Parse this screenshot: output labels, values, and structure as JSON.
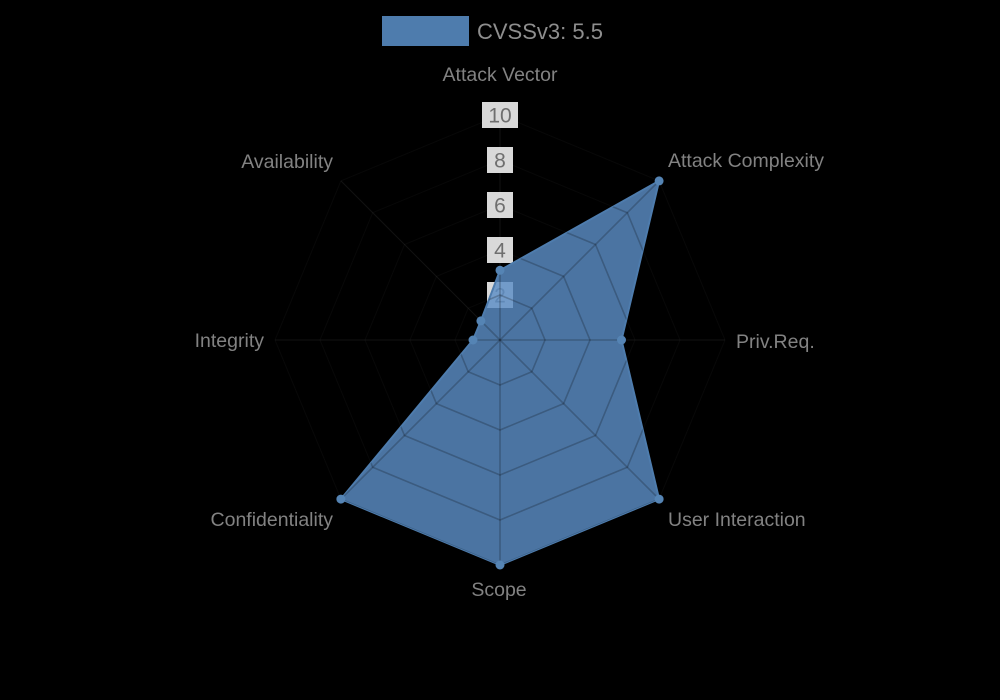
{
  "legend": {
    "label": "CVSSv3: 5.5",
    "swatch_color": "#4e7cad"
  },
  "chart_data": {
    "type": "radar",
    "title": "CVSSv3: 5.5",
    "categories": [
      "Attack Vector",
      "Attack Complexity",
      "Priv.Req.",
      "User Interaction",
      "Scope",
      "Confidentiality",
      "Integrity",
      "Availability"
    ],
    "series": [
      {
        "name": "CVSSv3: 5.5",
        "values": [
          3.1,
          10,
          5.4,
          10,
          10,
          10,
          1.2,
          1.2
        ]
      }
    ],
    "scale": {
      "min": 0,
      "max": 10,
      "ticks": [
        2,
        4,
        6,
        8,
        10
      ]
    },
    "legend_position": "top",
    "grid": "octagonal-web",
    "colors": {
      "background": "#000000",
      "series": "#5584b4",
      "series_solid": "#4e7cad",
      "series_fill": "rgba(92,142,198,0.82)",
      "grid_inner": "rgba(0,0,0,0.22)",
      "grid_outer": "rgba(255,255,255,0.07)",
      "tick_backdrop": "rgba(255,255,255,0.85)",
      "tick_text": "#6f6f6f",
      "axis_label_text": "#828282",
      "legend_text": "#8e8e8e"
    }
  }
}
